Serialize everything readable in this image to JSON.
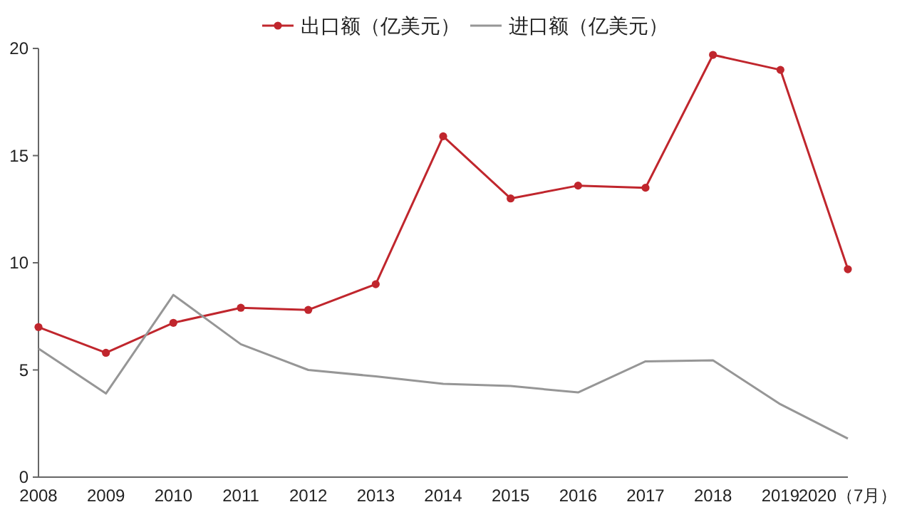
{
  "chart_data": {
    "type": "line",
    "categories": [
      "2008",
      "2009",
      "2010",
      "2011",
      "2012",
      "2013",
      "2014",
      "2015",
      "2016",
      "2017",
      "2018",
      "2019",
      "2020（7月）"
    ],
    "series": [
      {
        "name": "出口额（亿美元）",
        "color": "#c0262d",
        "marker": "circle",
        "values": [
          7.0,
          5.8,
          7.2,
          7.9,
          7.8,
          9.0,
          15.9,
          13.0,
          13.6,
          13.5,
          19.7,
          19.0,
          9.7
        ]
      },
      {
        "name": "进口额（亿美元）",
        "color": "#969696",
        "marker": "none",
        "values": [
          6.0,
          3.9,
          8.5,
          6.2,
          5.0,
          4.7,
          4.35,
          4.25,
          3.95,
          5.4,
          5.45,
          3.4,
          1.8
        ]
      }
    ],
    "ylim": [
      0,
      20
    ],
    "yticks": [
      0,
      5,
      10,
      15,
      20
    ],
    "grid": false,
    "legend": "top"
  }
}
